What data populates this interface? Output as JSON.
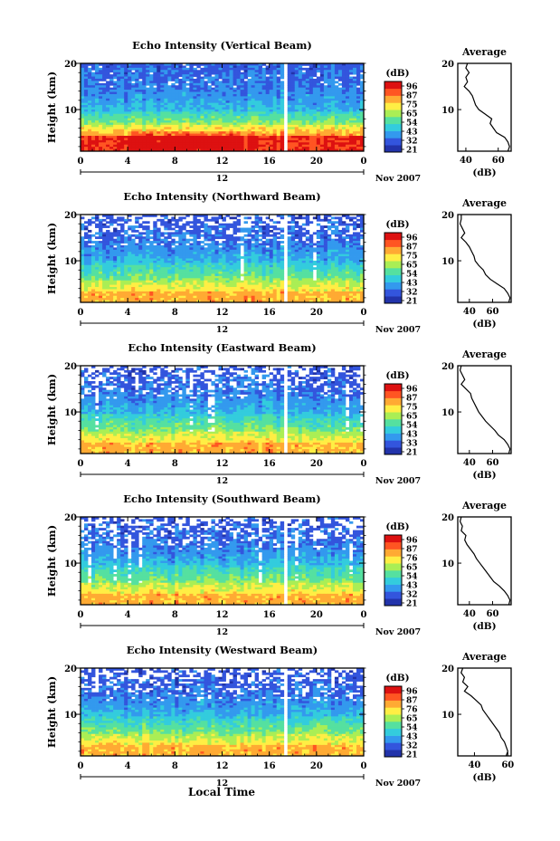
{
  "figure": {
    "xlabel_bottom": "Local Time",
    "date_label": "Nov 2007",
    "colorbar_unit": "(dB)",
    "average_title": "Average",
    "average_xlabel": "(dB)",
    "colors": {
      "scale": [
        "#2233aa",
        "#3355dd",
        "#3399ee",
        "#33ccdd",
        "#55e0a0",
        "#aaee55",
        "#ffee44",
        "#ffaa33",
        "#ff5522",
        "#dd1111"
      ],
      "line": "#000000",
      "gap": "#ffffff"
    }
  },
  "chart_data": [
    {
      "type": "heatmap",
      "title": "Echo Intensity (Vertical Beam)",
      "ylabel": "Height (km)",
      "x_ticks": [
        "0",
        "4",
        "8",
        "12",
        "16",
        "20",
        "0"
      ],
      "x_sub_label": "12",
      "y_ticks": [
        "20",
        "10"
      ],
      "ylim": [
        1,
        20
      ],
      "xlim": [
        0,
        24
      ],
      "data_gap_hours": [
        17.1,
        17.5
      ],
      "colorbar_ticks": [
        "96",
        "87",
        "75",
        "65",
        "54",
        "43",
        "32",
        "21"
      ],
      "profile": {
        "title": "Average",
        "xlabel": "(dB)",
        "x_ticks": [
          "40",
          "60"
        ],
        "xlim": [
          35,
          68
        ],
        "y_ticks": [
          "20",
          "10"
        ],
        "height_km": [
          20,
          19,
          18,
          17,
          16,
          15,
          14,
          13,
          12,
          11,
          10,
          9,
          8,
          7,
          6,
          5,
          4,
          3,
          2,
          1
        ],
        "avg_db": [
          41,
          40,
          42,
          40,
          41,
          39,
          42,
          44,
          45,
          46,
          48,
          52,
          56,
          55,
          57,
          59,
          64,
          66,
          67,
          66
        ]
      }
    },
    {
      "type": "heatmap",
      "title": "Echo Intensity (Northward Beam)",
      "ylabel": "Height (km)",
      "x_ticks": [
        "0",
        "4",
        "8",
        "12",
        "16",
        "20",
        "0"
      ],
      "x_sub_label": "12",
      "y_ticks": [
        "20",
        "10"
      ],
      "ylim": [
        1,
        20
      ],
      "xlim": [
        0,
        24
      ],
      "data_gap_hours": [
        17.1,
        17.5
      ],
      "colorbar_ticks": [
        "96",
        "87",
        "75",
        "65",
        "54",
        "43",
        "32",
        "21"
      ],
      "profile": {
        "title": "Average",
        "xlabel": "(dB)",
        "x_ticks": [
          "40",
          "60"
        ],
        "xlim": [
          30,
          76
        ],
        "y_ticks": [
          "20",
          "10"
        ],
        "height_km": [
          20,
          19,
          18,
          17,
          16,
          15,
          14,
          13,
          12,
          11,
          10,
          9,
          8,
          7,
          6,
          5,
          4,
          3,
          2,
          1
        ],
        "avg_db": [
          33,
          33,
          32,
          34,
          36,
          33,
          37,
          40,
          42,
          44,
          45,
          48,
          52,
          54,
          58,
          64,
          70,
          73,
          75,
          74
        ]
      }
    },
    {
      "type": "heatmap",
      "title": "Echo Intensity (Eastward Beam)",
      "ylabel": "Height (km)",
      "x_ticks": [
        "0",
        "4",
        "8",
        "12",
        "16",
        "20",
        "0"
      ],
      "x_sub_label": "12",
      "y_ticks": [
        "20",
        "10"
      ],
      "ylim": [
        1,
        20
      ],
      "xlim": [
        0,
        24
      ],
      "data_gap_hours": [
        17.1,
        17.5
      ],
      "colorbar_ticks": [
        "96",
        "87",
        "75",
        "65",
        "54",
        "43",
        "33",
        "21"
      ],
      "profile": {
        "title": "Average",
        "xlabel": "(dB)",
        "x_ticks": [
          "40",
          "60"
        ],
        "xlim": [
          30,
          76
        ],
        "y_ticks": [
          "20",
          "10"
        ],
        "height_km": [
          20,
          19,
          18,
          17,
          16,
          15,
          14,
          13,
          12,
          11,
          10,
          9,
          8,
          7,
          6,
          5,
          4,
          3,
          2,
          1
        ],
        "avg_db": [
          33,
          32,
          34,
          36,
          33,
          37,
          41,
          42,
          44,
          46,
          48,
          51,
          54,
          58,
          62,
          65,
          70,
          73,
          75,
          74
        ]
      }
    },
    {
      "type": "heatmap",
      "title": "Echo Intensity (Southward Beam)",
      "ylabel": "Height (km)",
      "x_ticks": [
        "0",
        "4",
        "8",
        "12",
        "16",
        "20",
        "0"
      ],
      "x_sub_label": "12",
      "y_ticks": [
        "20",
        "10"
      ],
      "ylim": [
        1,
        20
      ],
      "xlim": [
        0,
        24
      ],
      "data_gap_hours": [
        17.1,
        17.5
      ],
      "colorbar_ticks": [
        "96",
        "87",
        "76",
        "65",
        "54",
        "43",
        "32",
        "21"
      ],
      "profile": {
        "title": "Average",
        "xlabel": "(dB)",
        "x_ticks": [
          "40",
          "60"
        ],
        "xlim": [
          30,
          76
        ],
        "y_ticks": [
          "20",
          "10"
        ],
        "height_km": [
          20,
          19,
          18,
          17,
          16,
          15,
          14,
          13,
          12,
          11,
          10,
          9,
          8,
          7,
          6,
          5,
          4,
          3,
          2,
          1
        ],
        "avg_db": [
          33,
          32,
          34,
          33,
          37,
          36,
          38,
          41,
          44,
          46,
          49,
          52,
          55,
          58,
          61,
          66,
          70,
          73,
          75,
          74
        ]
      }
    },
    {
      "type": "heatmap",
      "title": "Echo Intensity (Westward Beam)",
      "ylabel": "Height (km)",
      "x_ticks": [
        "0",
        "4",
        "8",
        "12",
        "16",
        "20",
        "0"
      ],
      "x_sub_label": "12",
      "y_ticks": [
        "20",
        "10"
      ],
      "ylim": [
        1,
        20
      ],
      "xlim": [
        0,
        24
      ],
      "data_gap_hours": [
        17.1,
        17.5
      ],
      "colorbar_ticks": [
        "96",
        "87",
        "76",
        "65",
        "54",
        "43",
        "32",
        "21"
      ],
      "profile": {
        "title": "Average",
        "xlabel": "(dB)",
        "x_ticks": [
          "40",
          "60"
        ],
        "xlim": [
          30,
          62
        ],
        "y_ticks": [
          "20",
          "10"
        ],
        "height_km": [
          20,
          19,
          18,
          17,
          16,
          15,
          14,
          13,
          12,
          11,
          10,
          9,
          8,
          7,
          6,
          5,
          4,
          3,
          2,
          1
        ],
        "avg_db": [
          33,
          32,
          34,
          33,
          36,
          34,
          38,
          41,
          44,
          45,
          47,
          49,
          51,
          53,
          55,
          56,
          58,
          59,
          60,
          59
        ]
      }
    }
  ]
}
